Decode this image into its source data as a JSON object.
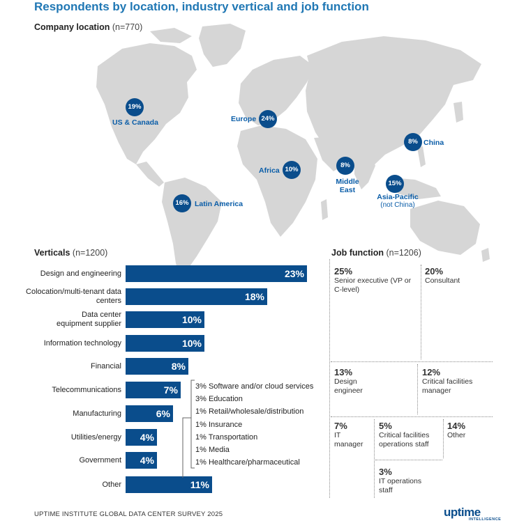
{
  "title": "Respondents by location, industry vertical and job function",
  "location": {
    "heading": "Company location",
    "n": "(n=770)",
    "regions": [
      {
        "pct": "19%",
        "label": "US & Canada",
        "sub": ""
      },
      {
        "pct": "24%",
        "label": "Europe",
        "sub": ""
      },
      {
        "pct": "8%",
        "label": "China",
        "sub": ""
      },
      {
        "pct": "10%",
        "label": "Africa",
        "sub": ""
      },
      {
        "pct": "8%",
        "label": "Middle East",
        "sub": ""
      },
      {
        "pct": "15%",
        "label": "Asia-Pacific",
        "sub": "(not China)"
      },
      {
        "pct": "16%",
        "label": "Latin America",
        "sub": ""
      }
    ]
  },
  "verticals": {
    "heading": "Verticals",
    "n": "(n=1200)",
    "other_breakdown": [
      "3% Software and/or cloud services",
      "3% Education",
      "1% Retail/wholesale/distribution",
      "1% Insurance",
      "1% Transportation",
      "1% Media",
      "1% Healthcare/pharmaceutical"
    ]
  },
  "job_function": {
    "heading": "Job function",
    "n": "(n=1206)",
    "items": [
      {
        "pct": "25%",
        "label": "Senior executive (VP or C-level)"
      },
      {
        "pct": "20%",
        "label": "Consultant"
      },
      {
        "pct": "13%",
        "label": "Design engineer"
      },
      {
        "pct": "12%",
        "label": "Critical facilities manager"
      },
      {
        "pct": "7%",
        "label": "IT manager"
      },
      {
        "pct": "5%",
        "label": "Critical facilities operations staff"
      },
      {
        "pct": "14%",
        "label": "Other"
      },
      {
        "pct": "3%",
        "label": "IT operations staff"
      }
    ]
  },
  "chart_data": {
    "type": "bar",
    "orientation": "horizontal",
    "categories": [
      "Design and engineering",
      "Colocation/multi-tenant data centers",
      "Data center equipment supplier",
      "Information technology",
      "Financial",
      "Telecommunications",
      "Manufacturing",
      "Utilities/energy",
      "Government",
      "Other"
    ],
    "values": [
      23,
      18,
      10,
      10,
      8,
      7,
      6,
      4,
      4,
      11
    ],
    "value_labels": [
      "23%",
      "18%",
      "10%",
      "10%",
      "8%",
      "7%",
      "6%",
      "4%",
      "4%",
      "11%"
    ],
    "title": "Verticals (n=1200)",
    "color": "#0a4d8c"
  },
  "footer": "UPTIME INSTITUTE GLOBAL DATA CENTER SURVEY 2025",
  "logo": {
    "main": "uptime",
    "sub": "INTELLIGENCE"
  },
  "colors": {
    "accent": "#1f77b4",
    "bar": "#0a4d8c",
    "map": "#d9d9d9",
    "label": "#0a5da8"
  }
}
